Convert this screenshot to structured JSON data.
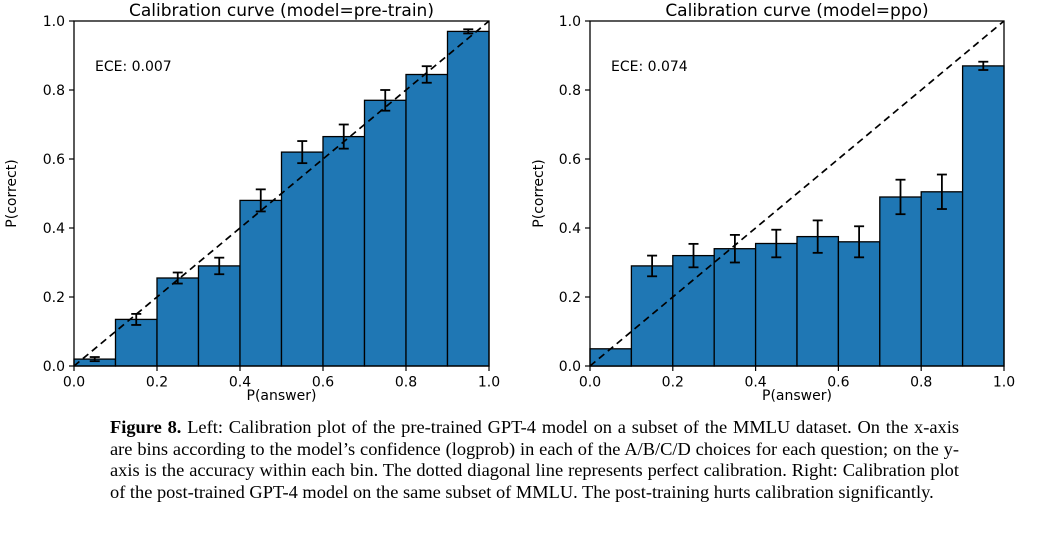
{
  "figure": {
    "caption_label": "Figure 8.",
    "caption_text": "Left: Calibration plot of the pre-trained GPT-4 model on a subset of the MMLU dataset. On the x-axis are bins according to the model’s confidence (logprob) in each of the A/B/C/D choices for each question; on the y-axis is the accuracy within each bin. The dotted diagonal line represents perfect calibration. Right: Calibration plot of the post-trained GPT-4 model on the same subset of MMLU. The post-training hurts calibration significantly."
  },
  "colors": {
    "bar_fill": "#1f77b4",
    "bar_edge": "#000000",
    "diagonal": "#000000",
    "text": "#000000"
  },
  "chart_data": [
    {
      "type": "bar",
      "title": "Calibration curve (model=pre-train)",
      "ece_label": "ECE: 0.007",
      "xlabel": "P(answer)",
      "ylabel": "P(correct)",
      "xlim": [
        0.0,
        1.0
      ],
      "ylim": [
        0.0,
        1.0
      ],
      "xticks": [
        "0.0",
        "0.2",
        "0.4",
        "0.6",
        "0.8",
        "1.0"
      ],
      "yticks": [
        "0.0",
        "0.2",
        "0.4",
        "0.6",
        "0.8",
        "1.0"
      ],
      "grid": false,
      "legend": null,
      "diagonal_line": true,
      "bin_width": 0.1,
      "bin_left_edges": [
        0.0,
        0.1,
        0.2,
        0.3,
        0.4,
        0.5,
        0.6,
        0.7,
        0.8,
        0.9
      ],
      "values": [
        0.02,
        0.135,
        0.255,
        0.29,
        0.48,
        0.62,
        0.665,
        0.77,
        0.845,
        0.97
      ],
      "errors": [
        0.006,
        0.016,
        0.016,
        0.024,
        0.032,
        0.032,
        0.035,
        0.03,
        0.024,
        0.006
      ]
    },
    {
      "type": "bar",
      "title": "Calibration curve (model=ppo)",
      "ece_label": "ECE: 0.074",
      "xlabel": "P(answer)",
      "ylabel": "P(correct)",
      "xlim": [
        0.0,
        1.0
      ],
      "ylim": [
        0.0,
        1.0
      ],
      "xticks": [
        "0.0",
        "0.2",
        "0.4",
        "0.6",
        "0.8",
        "1.0"
      ],
      "yticks": [
        "0.0",
        "0.2",
        "0.4",
        "0.6",
        "0.8",
        "1.0"
      ],
      "grid": false,
      "legend": null,
      "diagonal_line": true,
      "bin_width": 0.1,
      "bin_left_edges": [
        0.0,
        0.1,
        0.2,
        0.3,
        0.4,
        0.5,
        0.6,
        0.7,
        0.8,
        0.9
      ],
      "values": [
        0.05,
        0.29,
        0.32,
        0.34,
        0.355,
        0.375,
        0.36,
        0.49,
        0.505,
        0.87
      ],
      "errors": [
        0,
        0.03,
        0.034,
        0.04,
        0.04,
        0.047,
        0.045,
        0.05,
        0.05,
        0.012
      ]
    }
  ]
}
